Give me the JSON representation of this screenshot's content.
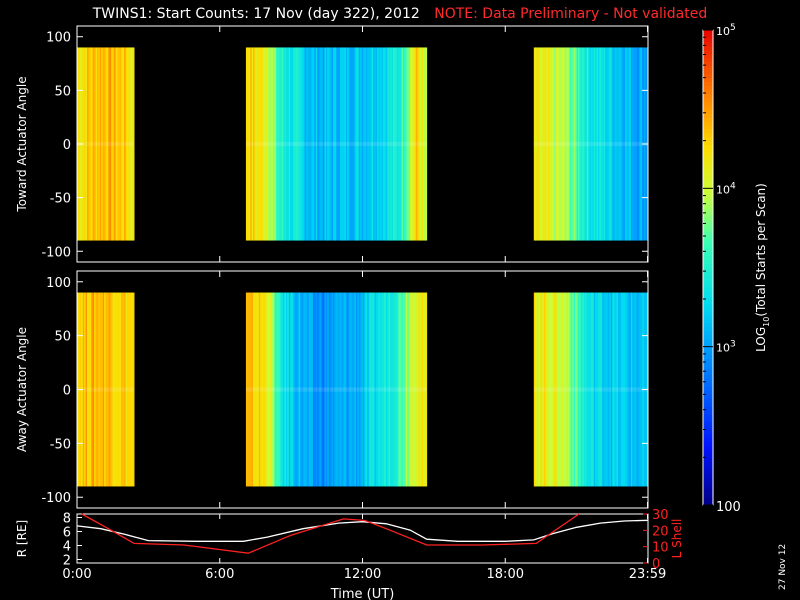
{
  "title": "TWINS1: Start Counts: 17 Nov (day 322), 2012",
  "note": "NOTE: Data Preliminary - Not validated",
  "stamp": "27 Nov 12",
  "chart_data": [
    {
      "type": "heatmap",
      "ylabel": "Toward Actuator Angle",
      "ylim": [
        -110,
        110
      ],
      "yticks": [
        -100,
        -50,
        0,
        50,
        100
      ],
      "xlim_hours": [
        0,
        24
      ],
      "data_segments_hours": [
        [
          0.0,
          2.4
        ],
        [
          7.1,
          14.7
        ],
        [
          19.2,
          24.0
        ]
      ],
      "angle_range": [
        -90,
        90
      ],
      "log10_counts_profile": [
        {
          "t": 0.0,
          "v": 4.2
        },
        {
          "t": 1.0,
          "v": 4.4
        },
        {
          "t": 2.0,
          "v": 4.3
        },
        {
          "t": 2.4,
          "v": 4.1
        },
        {
          "t": 7.1,
          "v": 4.3
        },
        {
          "t": 8.0,
          "v": 4.1
        },
        {
          "t": 8.5,
          "v": 3.5
        },
        {
          "t": 10.0,
          "v": 3.1
        },
        {
          "t": 12.0,
          "v": 3.2
        },
        {
          "t": 13.5,
          "v": 3.4
        },
        {
          "t": 14.3,
          "v": 4.3
        },
        {
          "t": 14.7,
          "v": 3.8
        },
        {
          "t": 19.2,
          "v": 4.1
        },
        {
          "t": 20.5,
          "v": 3.9
        },
        {
          "t": 21.5,
          "v": 3.4
        },
        {
          "t": 24.0,
          "v": 3.0
        }
      ]
    },
    {
      "type": "heatmap",
      "ylabel": "Away Actuator Angle",
      "ylim": [
        -110,
        110
      ],
      "yticks": [
        -100,
        -50,
        0,
        50,
        100
      ],
      "xlim_hours": [
        0,
        24
      ],
      "data_segments_hours": [
        [
          0.0,
          2.4
        ],
        [
          7.1,
          14.7
        ],
        [
          19.2,
          24.0
        ]
      ],
      "angle_range": [
        -90,
        90
      ],
      "log10_counts_profile": [
        {
          "t": 0.0,
          "v": 4.3
        },
        {
          "t": 1.0,
          "v": 4.4
        },
        {
          "t": 2.0,
          "v": 4.3
        },
        {
          "t": 2.4,
          "v": 4.2
        },
        {
          "t": 7.1,
          "v": 4.3
        },
        {
          "t": 8.0,
          "v": 4.2
        },
        {
          "t": 8.5,
          "v": 3.4
        },
        {
          "t": 10.0,
          "v": 2.9
        },
        {
          "t": 12.0,
          "v": 3.1
        },
        {
          "t": 13.5,
          "v": 3.6
        },
        {
          "t": 14.3,
          "v": 4.2
        },
        {
          "t": 14.7,
          "v": 4.0
        },
        {
          "t": 19.2,
          "v": 4.2
        },
        {
          "t": 20.5,
          "v": 4.0
        },
        {
          "t": 21.5,
          "v": 3.3
        },
        {
          "t": 24.0,
          "v": 3.1
        }
      ]
    },
    {
      "type": "line",
      "ylabel": "R [RE]",
      "ylim": [
        1.5,
        8.5
      ],
      "yticks": [
        2,
        4,
        6,
        8
      ],
      "y2label": "L Shell",
      "y2lim": [
        0,
        30
      ],
      "y2ticks": [
        0,
        10,
        20,
        30
      ],
      "xlabel": "Time (UT)",
      "xtick_labels": [
        "0:00",
        "6:00",
        "12:00",
        "18:00",
        "23:59"
      ],
      "xtick_hours": [
        0,
        6,
        12,
        18,
        23.98
      ],
      "series": [
        {
          "axis": "R",
          "color": "#ffffff",
          "x": [
            0,
            1,
            2,
            3,
            5,
            7,
            8,
            9.5,
            11,
            12,
            13,
            14,
            14.7,
            16,
            18,
            19.2,
            20,
            21,
            22,
            23,
            24
          ],
          "y": [
            6.8,
            6.4,
            5.6,
            4.7,
            4.6,
            4.6,
            5.2,
            6.4,
            7.2,
            7.4,
            7.1,
            6.2,
            4.9,
            4.6,
            4.6,
            4.8,
            5.7,
            6.6,
            7.2,
            7.5,
            7.6
          ]
        },
        {
          "axis": "L",
          "color": "#ff2020",
          "x": [
            0.2,
            1.2,
            2.4,
            4.5,
            7.2,
            9.0,
            11.2,
            12.1,
            13.0,
            14.7,
            17.0,
            19.3,
            21.1
          ],
          "y": [
            30,
            22,
            12,
            11,
            6,
            17,
            27,
            26,
            21,
            11,
            11,
            12,
            30
          ]
        }
      ]
    }
  ],
  "colorbar": {
    "label": "LOG10(Total Starts per Scan)",
    "label_main": "LOG",
    "label_sub": "10",
    "label_rest": "(Total Starts per Scan)",
    "range_log10": [
      2,
      5
    ],
    "tick_labels": [
      "100",
      "10",
      "3",
      "10",
      "4",
      "10",
      "5"
    ],
    "ticks": [
      {
        "value": 2,
        "label": "100",
        "sup": ""
      },
      {
        "value": 3,
        "label": "10",
        "sup": "3"
      },
      {
        "value": 4,
        "label": "10",
        "sup": "4"
      },
      {
        "value": 5,
        "label": "10",
        "sup": "5"
      }
    ]
  }
}
